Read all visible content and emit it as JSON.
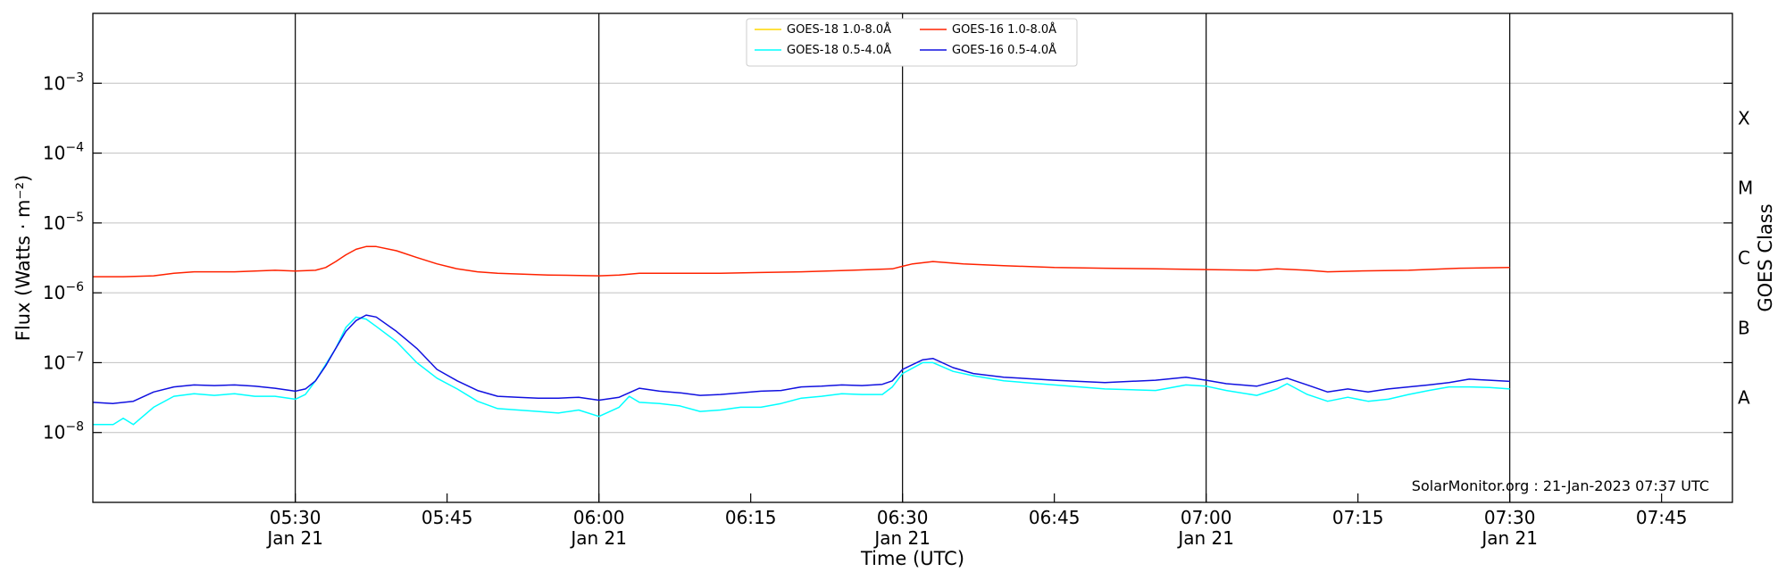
{
  "chart_data": {
    "type": "line",
    "xlabel": "Time (UTC)",
    "ylabel": "Flux (Watts · m⁻²)",
    "ylabel_right": "GOES Class",
    "x_range": [
      "05:10",
      "07:52"
    ],
    "x_tick_labels": [
      {
        "time": "05:30",
        "date": "Jan 21"
      },
      {
        "time": "05:45",
        "date": ""
      },
      {
        "time": "06:00",
        "date": "Jan 21"
      },
      {
        "time": "06:15",
        "date": ""
      },
      {
        "time": "06:30",
        "date": "Jan 21"
      },
      {
        "time": "06:45",
        "date": ""
      },
      {
        "time": "07:00",
        "date": "Jan 21"
      },
      {
        "time": "07:15",
        "date": ""
      },
      {
        "time": "07:30",
        "date": "Jan 21"
      },
      {
        "time": "07:45",
        "date": ""
      }
    ],
    "y_scale": "log",
    "ylim": [
      1e-09,
      0.01
    ],
    "y_tick_labels": [
      {
        "base": "10",
        "exp": "−3"
      },
      {
        "base": "10",
        "exp": "−4"
      },
      {
        "base": "10",
        "exp": "−5"
      },
      {
        "base": "10",
        "exp": "−6"
      },
      {
        "base": "10",
        "exp": "−7"
      },
      {
        "base": "10",
        "exp": "−8"
      }
    ],
    "goes_classes": [
      "X",
      "M",
      "C",
      "B",
      "A"
    ],
    "grid": true,
    "legend_position": "top-center",
    "credit": "SolarMonitor.org : 21-Jan-2023 07:37 UTC",
    "colors": {
      "goes18_long": "#ffd700",
      "goes18_short": "#00ffff",
      "goes16_long": "#ff2200",
      "goes16_short": "#1010e0",
      "grid": "#c0c0c0",
      "vline": "#000000"
    },
    "series": [
      {
        "name": "GOES-18 1.0-8.0Å",
        "color_key": "goes18_long",
        "x": [],
        "y": []
      },
      {
        "name": "GOES-18 0.5-4.0Å",
        "color_key": "goes18_short",
        "x": [
          "05:10",
          "05:12",
          "05:13",
          "05:14",
          "05:16",
          "05:18",
          "05:20",
          "05:22",
          "05:24",
          "05:26",
          "05:28",
          "05:30",
          "05:31",
          "05:32",
          "05:34",
          "05:35",
          "05:36",
          "05:37",
          "05:38",
          "05:40",
          "05:42",
          "05:44",
          "05:46",
          "05:48",
          "05:50",
          "05:52",
          "05:54",
          "05:56",
          "05:58",
          "06:00",
          "06:02",
          "06:03",
          "06:04",
          "06:06",
          "06:08",
          "06:10",
          "06:12",
          "06:14",
          "06:16",
          "06:18",
          "06:20",
          "06:22",
          "06:24",
          "06:26",
          "06:28",
          "06:29",
          "06:30",
          "06:32",
          "06:33",
          "06:35",
          "06:37",
          "06:40",
          "06:45",
          "06:50",
          "06:55",
          "06:58",
          "07:00",
          "07:02",
          "07:05",
          "07:07",
          "07:08",
          "07:10",
          "07:12",
          "07:14",
          "07:16",
          "07:18",
          "07:20",
          "07:22",
          "07:24",
          "07:26",
          "07:28",
          "07:30"
        ],
        "y": [
          1.3e-08,
          1.3e-08,
          1.6e-08,
          1.3e-08,
          2.3e-08,
          3.3e-08,
          3.6e-08,
          3.4e-08,
          3.6e-08,
          3.3e-08,
          3.3e-08,
          3e-08,
          3.5e-08,
          5.5e-08,
          1.6e-07,
          3.2e-07,
          4.5e-07,
          4.2e-07,
          3.3e-07,
          2e-07,
          1e-07,
          6e-08,
          4.2e-08,
          2.8e-08,
          2.2e-08,
          2.1e-08,
          2e-08,
          1.9e-08,
          2.1e-08,
          1.7e-08,
          2.3e-08,
          3.3e-08,
          2.7e-08,
          2.6e-08,
          2.4e-08,
          2e-08,
          2.1e-08,
          2.3e-08,
          2.3e-08,
          2.6e-08,
          3.1e-08,
          3.3e-08,
          3.6e-08,
          3.5e-08,
          3.5e-08,
          4.5e-08,
          7e-08,
          1e-07,
          1e-07,
          7.5e-08,
          6.5e-08,
          5.5e-08,
          4.8e-08,
          4.2e-08,
          4e-08,
          4.8e-08,
          4.6e-08,
          4e-08,
          3.4e-08,
          4.2e-08,
          5e-08,
          3.5e-08,
          2.8e-08,
          3.2e-08,
          2.8e-08,
          3e-08,
          3.5e-08,
          4e-08,
          4.5e-08,
          4.5e-08,
          4.4e-08,
          4.2e-08
        ]
      },
      {
        "name": "GOES-16 1.0-8.0Å",
        "color_key": "goes16_long",
        "x": [
          "05:10",
          "05:13",
          "05:16",
          "05:18",
          "05:20",
          "05:22",
          "05:24",
          "05:26",
          "05:28",
          "05:30",
          "05:32",
          "05:33",
          "05:34",
          "05:35",
          "05:36",
          "05:37",
          "05:38",
          "05:40",
          "05:42",
          "05:44",
          "05:46",
          "05:48",
          "05:50",
          "05:55",
          "06:00",
          "06:02",
          "06:04",
          "06:08",
          "06:12",
          "06:16",
          "06:20",
          "06:25",
          "06:29",
          "06:30",
          "06:31",
          "06:33",
          "06:36",
          "06:40",
          "06:45",
          "06:50",
          "06:55",
          "07:00",
          "07:05",
          "07:07",
          "07:10",
          "07:12",
          "07:15",
          "07:20",
          "07:25",
          "07:30"
        ],
        "y": [
          1.7e-06,
          1.7e-06,
          1.75e-06,
          1.9e-06,
          2e-06,
          2e-06,
          2e-06,
          2.05e-06,
          2.1e-06,
          2.05e-06,
          2.1e-06,
          2.3e-06,
          2.8e-06,
          3.5e-06,
          4.2e-06,
          4.6e-06,
          4.6e-06,
          4e-06,
          3.2e-06,
          2.6e-06,
          2.2e-06,
          2e-06,
          1.9e-06,
          1.8e-06,
          1.75e-06,
          1.8e-06,
          1.9e-06,
          1.9e-06,
          1.9e-06,
          1.95e-06,
          2e-06,
          2.1e-06,
          2.2e-06,
          2.4e-06,
          2.6e-06,
          2.8e-06,
          2.6e-06,
          2.45e-06,
          2.3e-06,
          2.25e-06,
          2.2e-06,
          2.15e-06,
          2.1e-06,
          2.2e-06,
          2.1e-06,
          2e-06,
          2.05e-06,
          2.1e-06,
          2.25e-06,
          2.3e-06
        ]
      },
      {
        "name": "GOES-16 0.5-4.0Å",
        "color_key": "goes16_short",
        "x": [
          "05:10",
          "05:12",
          "05:14",
          "05:16",
          "05:18",
          "05:20",
          "05:22",
          "05:24",
          "05:26",
          "05:28",
          "05:30",
          "05:31",
          "05:32",
          "05:33",
          "05:34",
          "05:35",
          "05:36",
          "05:37",
          "05:38",
          "05:40",
          "05:42",
          "05:44",
          "05:46",
          "05:48",
          "05:50",
          "05:52",
          "05:54",
          "05:56",
          "05:58",
          "06:00",
          "06:02",
          "06:04",
          "06:06",
          "06:08",
          "06:10",
          "06:12",
          "06:14",
          "06:16",
          "06:18",
          "06:20",
          "06:22",
          "06:24",
          "06:26",
          "06:28",
          "06:29",
          "06:30",
          "06:32",
          "06:33",
          "06:35",
          "06:37",
          "06:40",
          "06:45",
          "06:50",
          "06:55",
          "06:58",
          "07:00",
          "07:02",
          "07:05",
          "07:07",
          "07:08",
          "07:10",
          "07:12",
          "07:14",
          "07:16",
          "07:18",
          "07:20",
          "07:22",
          "07:24",
          "07:26",
          "07:28",
          "07:30"
        ],
        "y": [
          2.7e-08,
          2.6e-08,
          2.8e-08,
          3.8e-08,
          4.5e-08,
          4.8e-08,
          4.7e-08,
          4.8e-08,
          4.6e-08,
          4.3e-08,
          3.9e-08,
          4.2e-08,
          5.5e-08,
          9e-08,
          1.6e-07,
          2.8e-07,
          4e-07,
          4.8e-07,
          4.5e-07,
          2.8e-07,
          1.6e-07,
          8e-08,
          5.5e-08,
          4e-08,
          3.3e-08,
          3.2e-08,
          3.1e-08,
          3.1e-08,
          3.2e-08,
          2.9e-08,
          3.2e-08,
          4.3e-08,
          3.9e-08,
          3.7e-08,
          3.4e-08,
          3.5e-08,
          3.7e-08,
          3.9e-08,
          4e-08,
          4.5e-08,
          4.6e-08,
          4.8e-08,
          4.7e-08,
          4.9e-08,
          5.5e-08,
          8e-08,
          1.1e-07,
          1.15e-07,
          8.5e-08,
          7e-08,
          6.2e-08,
          5.6e-08,
          5.2e-08,
          5.6e-08,
          6.2e-08,
          5.6e-08,
          5e-08,
          4.6e-08,
          5.5e-08,
          6e-08,
          4.8e-08,
          3.8e-08,
          4.2e-08,
          3.8e-08,
          4.2e-08,
          4.5e-08,
          4.8e-08,
          5.2e-08,
          5.8e-08,
          5.6e-08,
          5.4e-08
        ]
      }
    ]
  }
}
